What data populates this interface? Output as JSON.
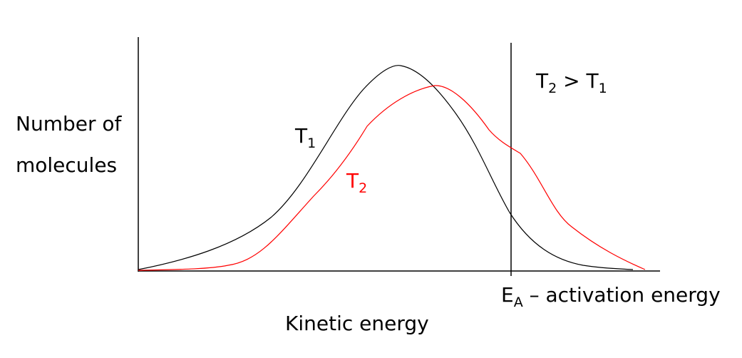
{
  "y_label_line1": "Number of",
  "y_label_line2": "molecules",
  "x_label": "Kinetic energy",
  "curves": {
    "t1": {
      "symbol": "T",
      "sub": "1",
      "color": "#000000"
    },
    "t2": {
      "symbol": "T",
      "sub": "2",
      "color": "#ff0000"
    }
  },
  "relation": {
    "left_symbol": "T",
    "left_sub": "2",
    "operator": " > ",
    "right_symbol": "T",
    "right_sub": "1"
  },
  "activation": {
    "symbol": "E",
    "sub": "A",
    "text": " – activation energy"
  },
  "colors": {
    "axis": "#000000",
    "t1_curve": "#000000",
    "t2_curve": "#ff0000"
  }
}
